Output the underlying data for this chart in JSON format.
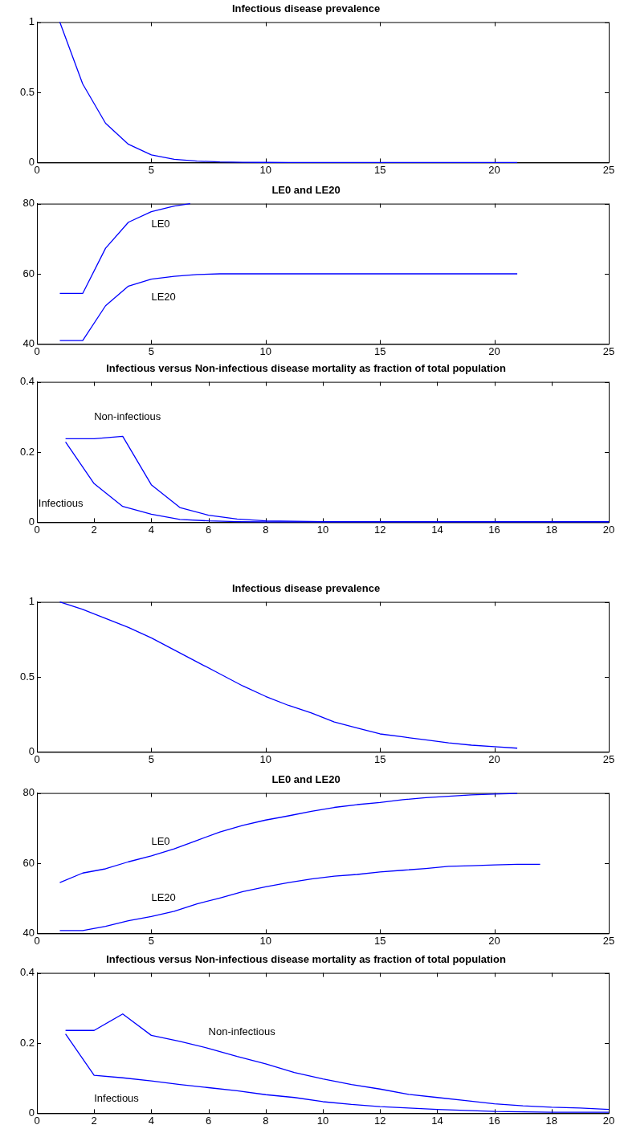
{
  "chart_data": [
    {
      "type": "line",
      "title": "Infectious disease prevalence",
      "marker": "none",
      "xlim": [
        0,
        25
      ],
      "xticks": [
        0,
        5,
        10,
        15,
        20,
        25
      ],
      "ylim": [
        0,
        1
      ],
      "yticks": [
        0,
        0.5,
        1
      ],
      "series": [
        {
          "color": "#0000ff",
          "x": [
            1,
            2,
            3,
            4,
            5,
            6,
            7,
            8,
            9,
            10,
            11,
            12,
            13,
            14,
            15,
            16,
            17,
            18,
            19,
            20,
            21
          ],
          "values": [
            1,
            0.56,
            0.28,
            0.13,
            0.055,
            0.023,
            0.01,
            0.004,
            0.002,
            0.001,
            0,
            0,
            0,
            0,
            0,
            0,
            0,
            0,
            0,
            0,
            0
          ]
        }
      ]
    },
    {
      "type": "line",
      "title": "LE0 and LE20",
      "marker": "none",
      "xlim": [
        0,
        25
      ],
      "xticks": [
        0,
        5,
        10,
        15,
        20,
        25
      ],
      "ylim": [
        40,
        80
      ],
      "yticks": [
        40,
        60,
        80
      ],
      "series": [
        {
          "name": "LE0",
          "color": "#0000ff",
          "x": [
            1,
            2,
            3,
            4,
            5,
            6,
            6.7
          ],
          "values": [
            54.4,
            54.4,
            67.3,
            74.7,
            77.7,
            79.3,
            80
          ]
        },
        {
          "name": "LE20",
          "color": "#0000ff",
          "x": [
            1,
            2,
            3,
            4,
            5,
            6,
            7,
            8,
            9,
            10,
            11,
            12,
            13,
            14,
            15,
            16,
            17,
            18,
            19,
            20,
            21
          ],
          "values": [
            41,
            41,
            50.9,
            56.5,
            58.5,
            59.3,
            59.8,
            60,
            60,
            60,
            60,
            60,
            60,
            60,
            60,
            60,
            60,
            60,
            60,
            60,
            60
          ]
        }
      ]
    },
    {
      "type": "line",
      "title": "Infectious versus Non-infectious disease mortality as fraction of total population",
      "marker": "none",
      "xlim": [
        0,
        20
      ],
      "xticks": [
        0,
        2,
        4,
        6,
        8,
        10,
        12,
        14,
        16,
        18,
        20
      ],
      "ylim": [
        0,
        0.4
      ],
      "yticks": [
        0,
        0.2,
        0.4
      ],
      "series": [
        {
          "name": "Non-infectious",
          "color": "#0000ff",
          "x": [
            1,
            2,
            3,
            4,
            5,
            6,
            7,
            8,
            9,
            10,
            11,
            12,
            13,
            14,
            15,
            16,
            17,
            18,
            19,
            20
          ],
          "values": [
            0.238,
            0.238,
            0.245,
            0.107,
            0.042,
            0.02,
            0.009,
            0.004,
            0.003,
            0.002,
            0.002,
            0.002,
            0.002,
            0.002,
            0.002,
            0.002,
            0.002,
            0.002,
            0.002,
            0.002
          ]
        },
        {
          "name": "Infectious",
          "color": "#0000ff",
          "x": [
            1,
            2,
            3,
            4,
            5,
            6,
            7,
            8,
            9,
            10,
            11,
            12,
            13,
            14,
            15,
            16,
            17,
            18,
            19,
            20
          ],
          "values": [
            0.229,
            0.11,
            0.045,
            0.023,
            0.008,
            0.004,
            0.002,
            0.001,
            0.001,
            0.001,
            0.001,
            0.001,
            0.001,
            0.001,
            0.001,
            0.001,
            0.001,
            0.001,
            0.001,
            0.001
          ]
        }
      ]
    },
    {
      "type": "line",
      "title": "Infectious disease prevalence",
      "marker": "none",
      "xlim": [
        0,
        25
      ],
      "xticks": [
        0,
        5,
        10,
        15,
        20,
        25
      ],
      "ylim": [
        0,
        1
      ],
      "yticks": [
        0,
        0.5,
        1
      ],
      "series": [
        {
          "color": "#0000ff",
          "x": [
            1,
            2,
            3,
            4,
            5,
            6,
            7,
            8,
            9,
            10,
            11,
            12,
            13,
            14,
            15,
            16,
            17,
            18,
            19,
            20,
            21
          ],
          "values": [
            1,
            0.95,
            0.89,
            0.83,
            0.76,
            0.68,
            0.6,
            0.52,
            0.44,
            0.37,
            0.31,
            0.26,
            0.2,
            0.16,
            0.12,
            0.1,
            0.08,
            0.06,
            0.045,
            0.035,
            0.025
          ]
        }
      ]
    },
    {
      "type": "line",
      "title": "LE0 and LE20",
      "marker": "none",
      "xlim": [
        0,
        25
      ],
      "xticks": [
        0,
        5,
        10,
        15,
        20,
        25
      ],
      "ylim": [
        40,
        80
      ],
      "yticks": [
        40,
        60,
        80
      ],
      "series": [
        {
          "name": "LE0",
          "color": "#0000ff",
          "x": [
            1,
            2,
            3,
            4,
            5,
            6,
            7,
            8,
            9,
            10,
            11,
            12,
            13,
            14,
            15,
            16,
            17,
            18,
            19,
            20,
            21
          ],
          "values": [
            54.5,
            57.2,
            58.4,
            60.4,
            62.1,
            64.1,
            66.5,
            68.9,
            70.8,
            72.3,
            73.5,
            74.8,
            75.9,
            76.7,
            77.3,
            78.1,
            78.7,
            79.1,
            79.5,
            79.7,
            79.9
          ]
        },
        {
          "name": "LE20",
          "color": "#0000ff",
          "x": [
            1,
            2,
            3,
            4,
            5,
            6,
            7,
            8,
            9,
            10,
            11,
            12,
            13,
            14,
            15,
            16,
            17,
            18,
            19,
            20,
            21,
            22
          ],
          "values": [
            40.8,
            40.8,
            42,
            43.6,
            44.8,
            46.3,
            48.4,
            50.1,
            51.9,
            53.3,
            54.5,
            55.5,
            56.3,
            56.8,
            57.5,
            58,
            58.5,
            59.1,
            59.3,
            59.5,
            59.7,
            59.7
          ]
        }
      ]
    },
    {
      "type": "line",
      "title": "Infectious versus Non-infectious disease mortality as fraction of total population",
      "marker": "none",
      "xlim": [
        0,
        20
      ],
      "xticks": [
        0,
        2,
        4,
        6,
        8,
        10,
        12,
        14,
        16,
        18,
        20
      ],
      "ylim": [
        0,
        0.4
      ],
      "yticks": [
        0,
        0.2,
        0.4
      ],
      "series": [
        {
          "name": "Non-infectious",
          "color": "#0000ff",
          "x": [
            1,
            2,
            3,
            4,
            5,
            6,
            7,
            8,
            9,
            10,
            11,
            12,
            13,
            14,
            15,
            16,
            17,
            18,
            19,
            20
          ],
          "values": [
            0.236,
            0.236,
            0.283,
            0.222,
            0.205,
            0.185,
            0.162,
            0.141,
            0.116,
            0.098,
            0.082,
            0.069,
            0.054,
            0.045,
            0.036,
            0.027,
            0.021,
            0.017,
            0.015,
            0.011
          ]
        },
        {
          "name": "Infectious",
          "color": "#0000ff",
          "x": [
            1,
            2,
            3,
            4,
            5,
            6,
            7,
            8,
            9,
            10,
            11,
            12,
            13,
            14,
            15,
            16,
            17,
            18,
            19,
            20
          ],
          "values": [
            0.226,
            0.108,
            0.101,
            0.092,
            0.082,
            0.073,
            0.064,
            0.053,
            0.045,
            0.033,
            0.025,
            0.019,
            0.015,
            0.011,
            0.008,
            0.005,
            0.004,
            0.003,
            0.003,
            0.003
          ]
        }
      ]
    }
  ]
}
